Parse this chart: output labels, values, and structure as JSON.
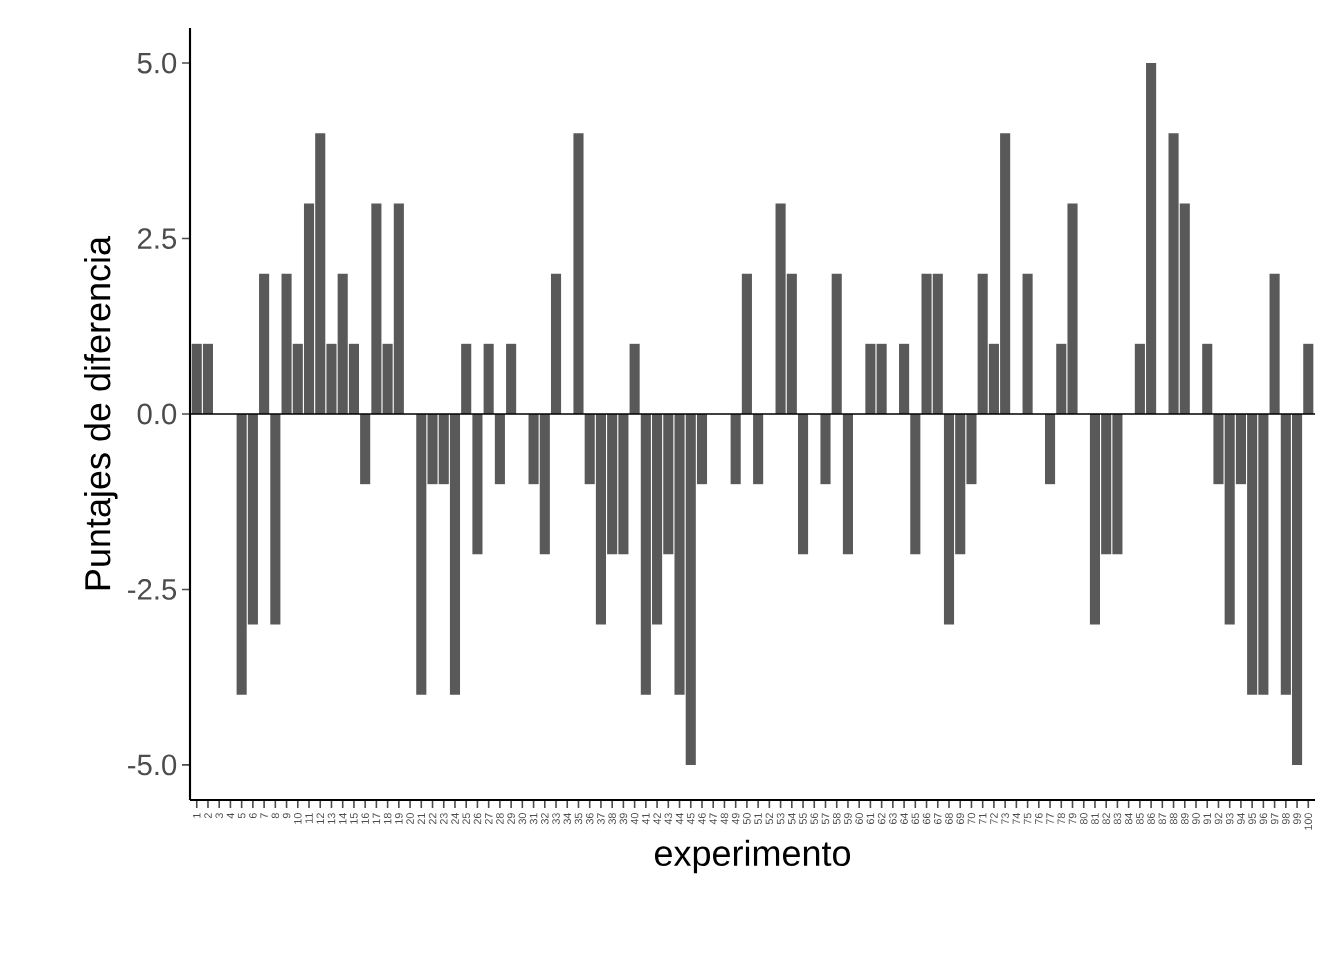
{
  "chart_data": {
    "type": "bar",
    "xlabel": "experimento",
    "ylabel": "Puntajes de diferencia",
    "categories": [
      "1",
      "2",
      "3",
      "4",
      "5",
      "6",
      "7",
      "8",
      "9",
      "10",
      "11",
      "12",
      "13",
      "14",
      "15",
      "16",
      "17",
      "18",
      "19",
      "20",
      "21",
      "22",
      "23",
      "24",
      "25",
      "26",
      "27",
      "28",
      "29",
      "30",
      "31",
      "32",
      "33",
      "34",
      "35",
      "36",
      "37",
      "38",
      "39",
      "40",
      "41",
      "42",
      "43",
      "44",
      "45",
      "46",
      "47",
      "48",
      "49",
      "50",
      "51",
      "52",
      "53",
      "54",
      "55",
      "56",
      "57",
      "58",
      "59",
      "60",
      "61",
      "62",
      "63",
      "64",
      "65",
      "66",
      "67",
      "68",
      "69",
      "70",
      "71",
      "72",
      "73",
      "74",
      "75",
      "76",
      "77",
      "78",
      "79",
      "80",
      "81",
      "82",
      "83",
      "84",
      "85",
      "86",
      "87",
      "88",
      "89",
      "90",
      "91",
      "92",
      "93",
      "94",
      "95",
      "96",
      "97",
      "98",
      "99",
      "100"
    ],
    "values": [
      1,
      1,
      0,
      0,
      -4,
      -3,
      2,
      -3,
      2,
      1,
      3,
      4,
      1,
      2,
      1,
      -1,
      3,
      1,
      3,
      0,
      -4,
      -1,
      -1,
      -4,
      1,
      -2,
      1,
      -1,
      1,
      0,
      -1,
      -2,
      2,
      0,
      4,
      -1,
      -3,
      -2,
      -2,
      1,
      -4,
      -3,
      -2,
      -4,
      -5,
      -1,
      0,
      0,
      -1,
      2,
      -1,
      0,
      3,
      2,
      -2,
      0,
      -1,
      2,
      -2,
      0,
      1,
      1,
      0,
      1,
      -2,
      2,
      2,
      -3,
      -2,
      -1,
      2,
      1,
      4,
      0,
      2,
      0,
      -1,
      1,
      3,
      0,
      -3,
      -2,
      -2,
      0,
      1,
      5,
      0,
      4,
      3,
      0,
      1,
      -1,
      -3,
      -1,
      -4,
      -4,
      2,
      -4,
      -5,
      1
    ],
    "color": "#595959",
    "ylim": [
      -5.5,
      5.5
    ],
    "yticks": [
      {
        "value": -5,
        "label": "-5.0"
      },
      {
        "value": -2.5,
        "label": "-2.5"
      },
      {
        "value": 0,
        "label": "0.0"
      },
      {
        "value": 2.5,
        "label": "2.5"
      },
      {
        "value": 5,
        "label": "5.0"
      }
    ],
    "ref_lines": [
      {
        "axis": "y",
        "value": 0,
        "color": "#000000"
      }
    ]
  }
}
